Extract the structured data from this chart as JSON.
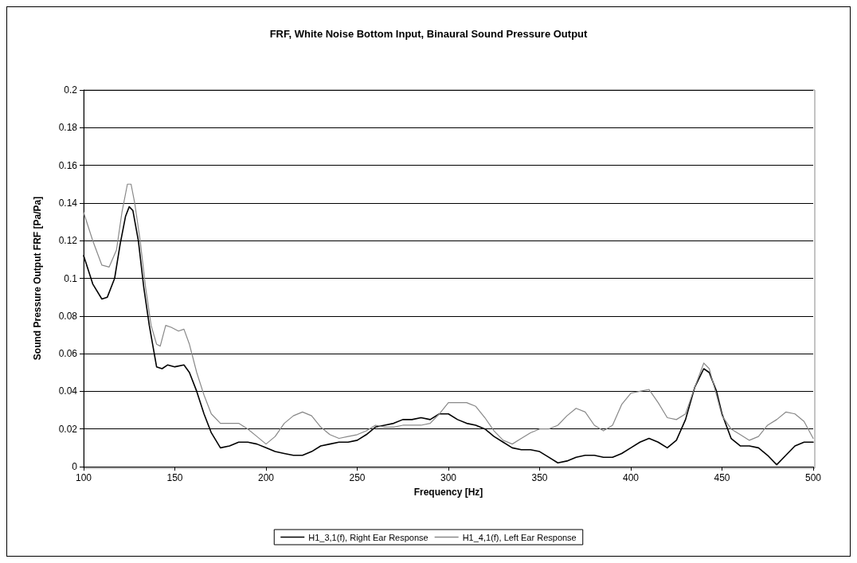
{
  "chart_data": {
    "type": "line",
    "title": "FRF, White Noise Bottom Input, Binaural Sound Pressure Output",
    "xlabel": "Frequency [Hz]",
    "ylabel": "Sound Pressure Output FRF [Pa/Pa]",
    "xlim": [
      100,
      500
    ],
    "xticks": [
      100,
      150,
      200,
      250,
      300,
      350,
      400,
      450,
      500
    ],
    "ylim": [
      0,
      0.2
    ],
    "yticks": [
      0,
      0.02,
      0.04,
      0.06,
      0.08,
      0.1,
      0.12,
      0.14,
      0.16,
      0.18,
      0.2
    ],
    "grid": "y",
    "legend": "bottom",
    "marker": "none",
    "line_style": "solid",
    "series": [
      {
        "name": "H1_3,1(f), Right Ear Response",
        "color": "#000000",
        "x": [
          100,
          105,
          110,
          113,
          117,
          120,
          123,
          125,
          127,
          130,
          133,
          136,
          140,
          143,
          146,
          150,
          155,
          158,
          162,
          166,
          170,
          175,
          180,
          185,
          190,
          195,
          200,
          205,
          210,
          215,
          220,
          225,
          230,
          235,
          240,
          245,
          250,
          255,
          260,
          265,
          270,
          275,
          280,
          285,
          290,
          295,
          300,
          305,
          310,
          315,
          320,
          325,
          330,
          335,
          340,
          345,
          350,
          355,
          360,
          365,
          370,
          375,
          380,
          385,
          390,
          395,
          400,
          405,
          410,
          415,
          420,
          425,
          430,
          435,
          440,
          443,
          447,
          450,
          455,
          460,
          465,
          470,
          475,
          480,
          485,
          490,
          495,
          500
        ],
        "values": [
          0.112,
          0.097,
          0.089,
          0.09,
          0.1,
          0.118,
          0.133,
          0.138,
          0.136,
          0.12,
          0.095,
          0.075,
          0.053,
          0.052,
          0.054,
          0.053,
          0.054,
          0.05,
          0.04,
          0.028,
          0.018,
          0.01,
          0.011,
          0.013,
          0.013,
          0.012,
          0.01,
          0.008,
          0.007,
          0.006,
          0.006,
          0.008,
          0.011,
          0.012,
          0.013,
          0.013,
          0.014,
          0.017,
          0.021,
          0.022,
          0.023,
          0.025,
          0.025,
          0.026,
          0.025,
          0.028,
          0.028,
          0.025,
          0.023,
          0.022,
          0.02,
          0.016,
          0.013,
          0.01,
          0.009,
          0.009,
          0.008,
          0.005,
          0.002,
          0.003,
          0.005,
          0.006,
          0.006,
          0.005,
          0.005,
          0.007,
          0.01,
          0.013,
          0.015,
          0.013,
          0.01,
          0.014,
          0.025,
          0.042,
          0.052,
          0.05,
          0.04,
          0.028,
          0.015,
          0.011,
          0.011,
          0.01,
          0.006,
          0.001,
          0.006,
          0.011,
          0.013,
          0.013
        ]
      },
      {
        "name": "H1_4,1(f), Left Ear Response",
        "color": "#888888",
        "x": [
          100,
          105,
          110,
          114,
          118,
          121,
          124,
          126,
          128,
          131,
          134,
          137,
          140,
          142,
          145,
          148,
          152,
          155,
          158,
          162,
          166,
          170,
          175,
          180,
          185,
          190,
          195,
          200,
          205,
          210,
          215,
          220,
          225,
          230,
          235,
          240,
          245,
          250,
          255,
          260,
          265,
          270,
          275,
          280,
          285,
          290,
          295,
          300,
          305,
          310,
          315,
          320,
          325,
          330,
          335,
          340,
          345,
          350,
          355,
          360,
          365,
          370,
          375,
          380,
          385,
          390,
          395,
          400,
          405,
          410,
          415,
          420,
          425,
          430,
          435,
          440,
          443,
          447,
          450,
          455,
          460,
          465,
          470,
          475,
          480,
          485,
          490,
          495,
          500
        ],
        "values": [
          0.135,
          0.12,
          0.107,
          0.106,
          0.115,
          0.135,
          0.15,
          0.15,
          0.14,
          0.12,
          0.095,
          0.075,
          0.065,
          0.064,
          0.075,
          0.074,
          0.072,
          0.073,
          0.065,
          0.05,
          0.038,
          0.028,
          0.023,
          0.023,
          0.023,
          0.02,
          0.016,
          0.012,
          0.016,
          0.023,
          0.027,
          0.029,
          0.027,
          0.021,
          0.017,
          0.015,
          0.016,
          0.017,
          0.019,
          0.022,
          0.021,
          0.021,
          0.022,
          0.022,
          0.022,
          0.023,
          0.028,
          0.034,
          0.034,
          0.034,
          0.032,
          0.026,
          0.019,
          0.014,
          0.012,
          0.015,
          0.018,
          0.02,
          0.02,
          0.022,
          0.027,
          0.031,
          0.029,
          0.022,
          0.019,
          0.022,
          0.033,
          0.039,
          0.04,
          0.041,
          0.034,
          0.026,
          0.025,
          0.028,
          0.042,
          0.055,
          0.052,
          0.038,
          0.027,
          0.02,
          0.017,
          0.014,
          0.016,
          0.022,
          0.025,
          0.029,
          0.028,
          0.024,
          0.015
        ]
      }
    ]
  }
}
